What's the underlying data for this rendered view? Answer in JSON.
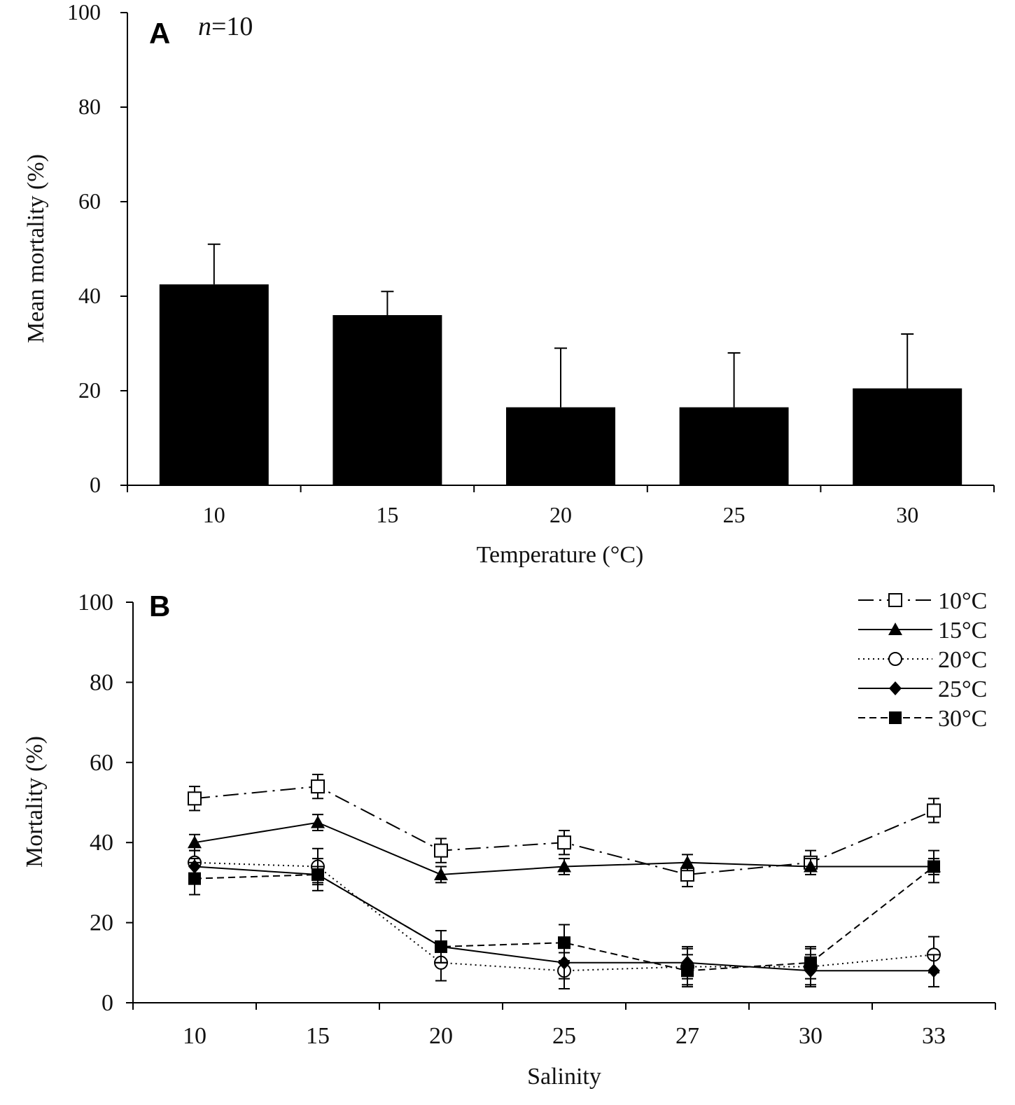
{
  "chart_data": [
    {
      "type": "bar",
      "panel_label": "A",
      "annotation_prefix": "n",
      "annotation_value": "=10",
      "title": "",
      "categories": [
        "10",
        "15",
        "20",
        "25",
        "30"
      ],
      "values": [
        42.5,
        36,
        16.5,
        16.5,
        20.5
      ],
      "error_plus": [
        8.5,
        5,
        12.5,
        11.5,
        11.5
      ],
      "xlabel": "Temperature (°C)",
      "ylabel": "Mean mortality (%)",
      "ylim": [
        0,
        100
      ],
      "yticks": [
        "0",
        "20",
        "40",
        "60",
        "80",
        "100"
      ],
      "bar_color": "#000000"
    },
    {
      "type": "line",
      "panel_label": "B",
      "title": "",
      "categories": [
        "10",
        "15",
        "20",
        "25",
        "27",
        "30",
        "33"
      ],
      "xlabel": "Salinity",
      "ylabel": "Mortality (%)",
      "ylim": [
        0,
        100
      ],
      "yticks": [
        "0",
        "20",
        "40",
        "60",
        "80",
        "100"
      ],
      "legend_position": "top-right",
      "series": [
        {
          "name": "10°C",
          "values": [
            51,
            54,
            38,
            40,
            32,
            35,
            48
          ],
          "errors": [
            3,
            3,
            3,
            3,
            3,
            3,
            3
          ],
          "marker": "open-square",
          "line": "dash-dot"
        },
        {
          "name": "15°C",
          "values": [
            40,
            45,
            32,
            34,
            35,
            34,
            34
          ],
          "errors": [
            2,
            2,
            2,
            2,
            2,
            2,
            2
          ],
          "marker": "filled-triangle",
          "line": "solid"
        },
        {
          "name": "20°C",
          "values": [
            35,
            34,
            10,
            8,
            9,
            9,
            12
          ],
          "errors": [
            3,
            4.5,
            4.5,
            4.5,
            4.5,
            4.5,
            4.5
          ],
          "marker": "open-circle",
          "line": "dotted"
        },
        {
          "name": "25°C",
          "values": [
            34,
            32,
            14,
            10,
            10,
            8,
            8
          ],
          "errors": [
            2,
            2,
            4,
            4,
            4,
            4,
            4
          ],
          "marker": "filled-diamond",
          "line": "solid"
        },
        {
          "name": "30°C",
          "values": [
            31,
            32,
            14,
            15,
            8,
            10,
            34
          ],
          "errors": [
            4,
            4,
            4,
            4.5,
            4,
            4,
            4
          ],
          "marker": "filled-square",
          "line": "dashed"
        }
      ]
    }
  ]
}
